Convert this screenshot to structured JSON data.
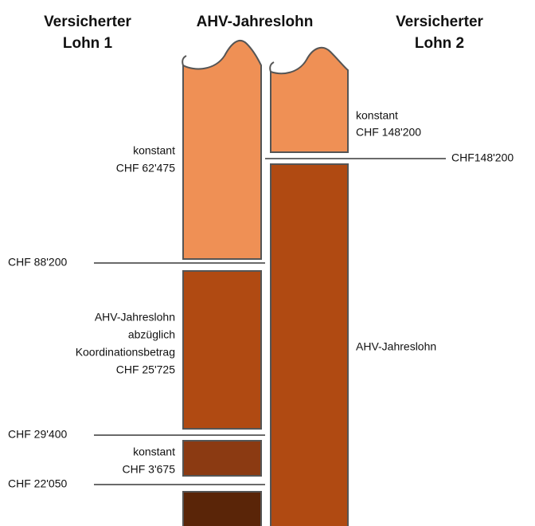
{
  "headers": {
    "left": [
      "Versicherter",
      "Lohn 1"
    ],
    "middle": "AHV-Jahreslohn",
    "right": [
      "Versicherter",
      "Lohn 2"
    ]
  },
  "thresholds": [
    "CHF 88'200",
    "CHF 29'400",
    "CHF 22'050",
    "CHF148'200"
  ],
  "segment_labels": {
    "lohn1_top": [
      "konstant",
      "CHF 62'475"
    ],
    "lohn1_middle": [
      "AHV-Jahreslohn",
      "abzüglich",
      "Koordinationsbetrag",
      "CHF 25'725"
    ],
    "lohn1_lower": [
      "konstant",
      "CHF 3'675"
    ],
    "lohn2_top": [
      "konstant",
      "CHF 148'200"
    ],
    "lohn2_main": "AHV-Jahreslohn"
  }
}
